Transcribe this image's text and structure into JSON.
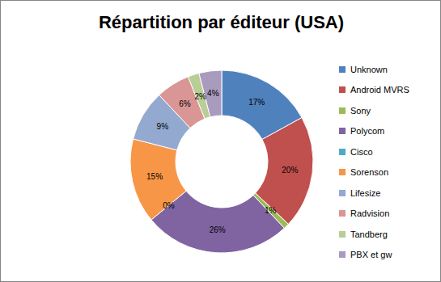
{
  "chart_data": {
    "type": "pie",
    "title": "Répartition par éditeur (USA)",
    "categories": [
      "Unknown",
      "Android MVRS",
      "Sony",
      "Polycom",
      "Cisco",
      "Sorenson",
      "Lifesize",
      "Radvision",
      "Tandberg",
      "PBX et gw"
    ],
    "values": [
      17,
      20,
      1,
      26,
      0,
      15,
      9,
      6,
      2,
      4
    ],
    "value_labels": [
      "17%",
      "20%",
      "1%",
      "26%",
      "0%",
      "15%",
      "9%",
      "6%",
      "2%",
      "4%"
    ],
    "colors": [
      "#4f81bd",
      "#c0504d",
      "#9bbb59",
      "#8064a2",
      "#4bacc6",
      "#f79646",
      "#93a9cf",
      "#d99694",
      "#b9cd96",
      "#a99bbd"
    ],
    "data_labels": true,
    "legend": "right"
  }
}
